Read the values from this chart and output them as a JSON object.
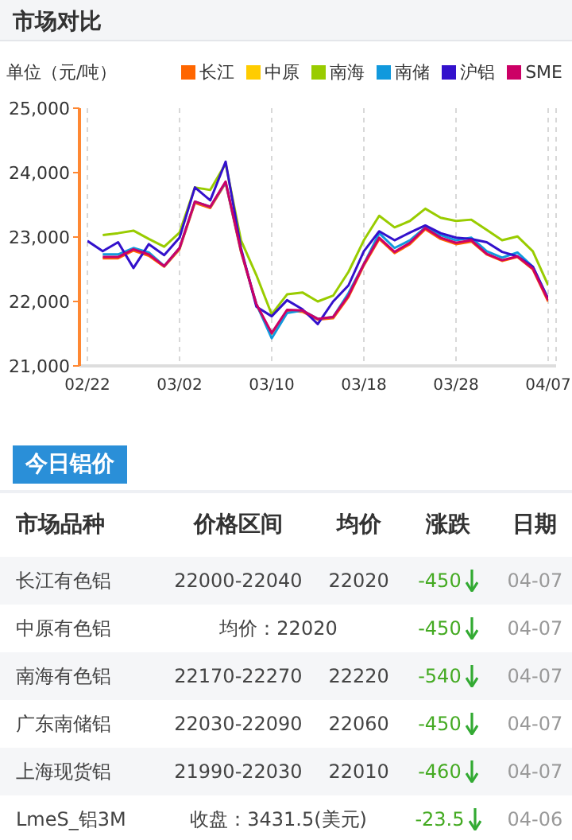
{
  "chart_data": {
    "type": "line",
    "title": "市场对比",
    "ylabel": "单位（元/吨）",
    "subtitle": "今日铝价",
    "categories": [
      "02/22",
      null,
      null,
      null,
      null,
      null,
      "03/02",
      null,
      null,
      null,
      null,
      null,
      "03/10",
      null,
      null,
      null,
      null,
      null,
      "03/18",
      null,
      null,
      null,
      null,
      null,
      "03/28",
      null,
      null,
      null,
      null,
      null,
      "04/07"
    ],
    "ylim": [
      21000,
      25000
    ],
    "yticks": [
      {
        "value": 21000,
        "label": "21,000"
      },
      {
        "value": 22000,
        "label": "22,000"
      },
      {
        "value": 23000,
        "label": "23,000"
      },
      {
        "value": 24000,
        "label": "24,000"
      },
      {
        "value": 25000,
        "label": "25,000"
      }
    ],
    "grid": "x",
    "legend": "top right",
    "marker": "none",
    "line_style": "solid",
    "series": [
      {
        "name": "长江",
        "color": "#ff6600",
        "values": [
          null,
          22670,
          22670,
          22790,
          22710,
          22540,
          22810,
          23530,
          23450,
          23840,
          22770,
          21950,
          21500,
          21860,
          21840,
          21720,
          21740,
          22070,
          22560,
          22970,
          22750,
          22890,
          23120,
          22970,
          22890,
          22930,
          22730,
          22630,
          22690,
          22500,
          22000
        ]
      },
      {
        "name": "中原",
        "color": "#ffcc00",
        "values": [
          null,
          null,
          null,
          null,
          null,
          null,
          null,
          null,
          null,
          null,
          null,
          null,
          null,
          null,
          null,
          null,
          null,
          null,
          null,
          null,
          null,
          null,
          null,
          null,
          null,
          null,
          null,
          null,
          null,
          null,
          null
        ]
      },
      {
        "name": "南海",
        "color": "#99cc00",
        "values": [
          null,
          23030,
          23060,
          23100,
          22970,
          22850,
          23070,
          23770,
          23730,
          24140,
          22950,
          22410,
          21800,
          22110,
          22140,
          22000,
          22090,
          22460,
          22950,
          23330,
          23150,
          23250,
          23440,
          23300,
          23250,
          23270,
          23110,
          22950,
          23010,
          22780,
          22250
        ]
      },
      {
        "name": "南储",
        "color": "#1199dd",
        "values": [
          null,
          22730,
          22730,
          22830,
          22760,
          22550,
          22830,
          23550,
          23470,
          23850,
          22790,
          21960,
          21430,
          21820,
          21860,
          21730,
          21760,
          22130,
          22580,
          23060,
          22830,
          22950,
          23150,
          23030,
          22950,
          22990,
          22780,
          22680,
          22760,
          22540,
          22040
        ]
      },
      {
        "name": "沪铝",
        "color": "#3311cc",
        "values": [
          22940,
          22780,
          22920,
          22520,
          22890,
          22720,
          22990,
          23770,
          23570,
          24170,
          22830,
          21920,
          21770,
          22020,
          21880,
          21650,
          22000,
          22250,
          22780,
          23090,
          22950,
          23070,
          23180,
          23060,
          22990,
          22970,
          22920,
          22770,
          22700,
          22540,
          22040
        ]
      },
      {
        "name": "SME",
        "color": "#cc0066",
        "values": [
          null,
          22690,
          22690,
          22810,
          22730,
          22550,
          22830,
          23550,
          23470,
          23860,
          22790,
          21960,
          21510,
          21870,
          21860,
          21730,
          21760,
          22090,
          22580,
          22990,
          22770,
          22910,
          23140,
          22990,
          22910,
          22950,
          22740,
          22640,
          22700,
          22510,
          22020
        ]
      }
    ],
    "annotations": [
      "市场品种\t价格区间\t均价\t涨跌\t日期",
      "长江有色铝\t22000-22040\t22020\t-450\t04-07",
      "中原有色铝\t均价：22020\t-450\t04-07",
      "南海有色铝\t22170-22270\t22220\t-540\t04-07",
      "广东南储铝\t22030-22090\t22060\t-450\t04-07",
      "上海现货铝\t21990-22030\t22010\t-460\t04-07",
      "LmeS_铝3M\t收盘：3431.5(美元)\t-23.5\t04-06"
    ]
  }
}
